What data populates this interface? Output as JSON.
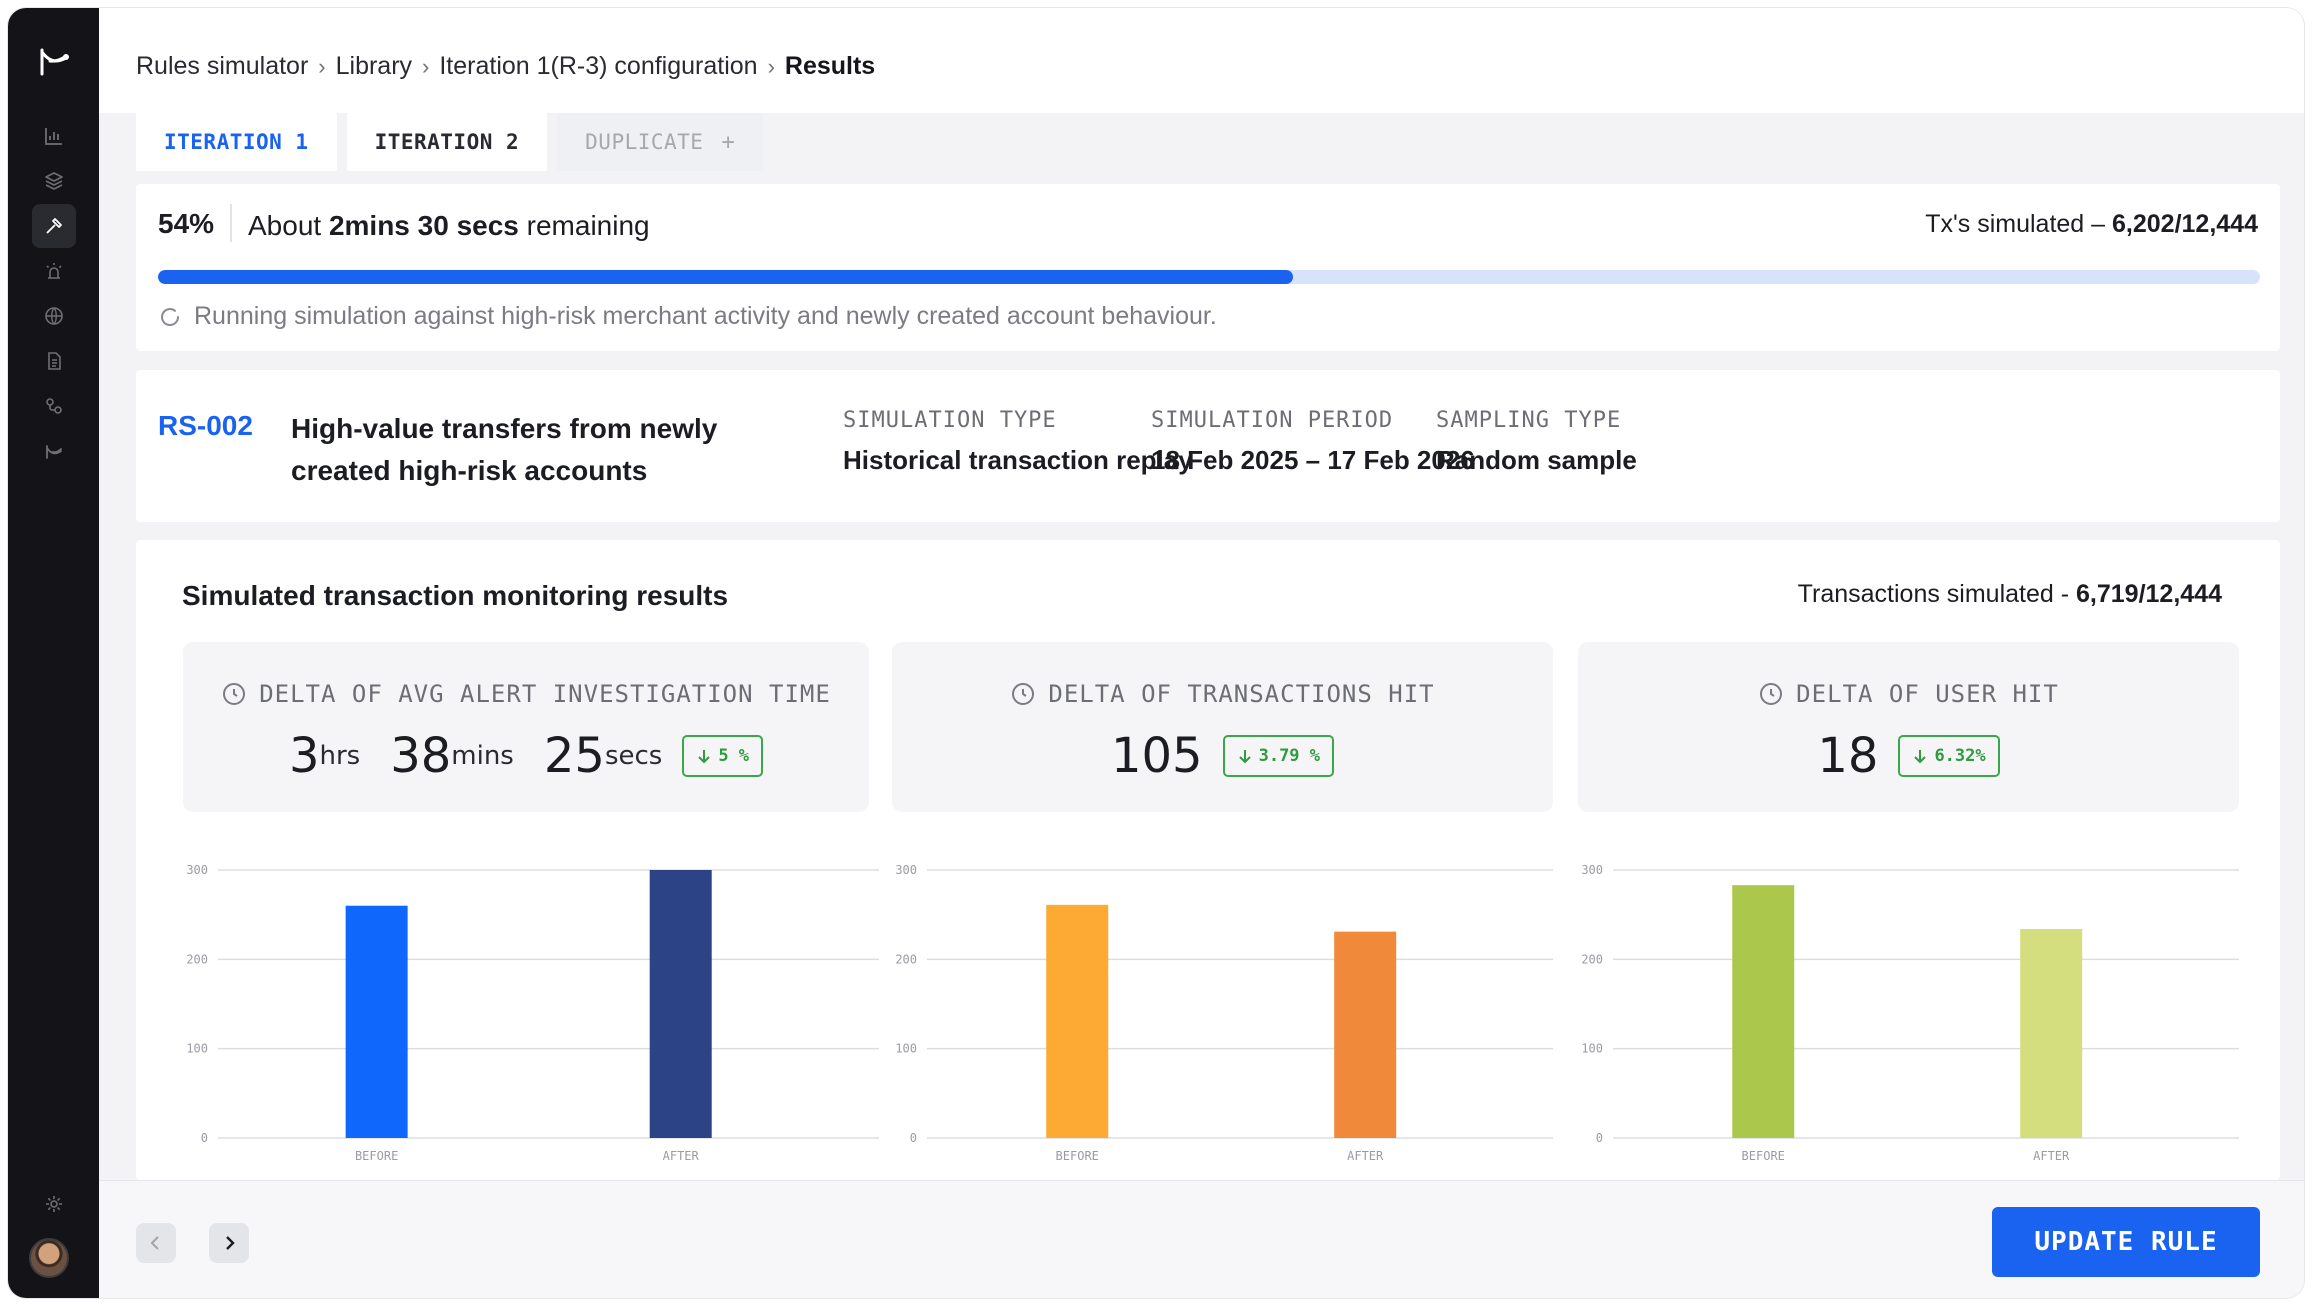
{
  "breadcrumb": {
    "items": [
      "Rules simulator",
      "Library",
      "Iteration 1(R-3) configuration"
    ],
    "current": "Results",
    "separator": "›"
  },
  "tabs": [
    {
      "label": "ITERATION 1",
      "state": "active"
    },
    {
      "label": "ITERATION 2",
      "state": "normal"
    },
    {
      "label": "DUPLICATE",
      "state": "disabled",
      "icon": "plus-icon"
    }
  ],
  "progress": {
    "percent_label": "54%",
    "percent": 54,
    "remaining_prefix": "About",
    "remaining_bold": "2mins 30 secs",
    "remaining_suffix": "remaining",
    "tx_label": "Tx's simulated –",
    "tx_value": "6,202/12,444",
    "status": "Running simulation against high-risk merchant activity and newly created account behaviour."
  },
  "rule": {
    "id": "RS-002",
    "title": "High-value transfers from newly created high-risk accounts",
    "meta": [
      {
        "label": "SIMULATION TYPE",
        "value": "Historical transaction replay"
      },
      {
        "label": "SIMULATION PERIOD",
        "value": "18 Feb 2025 – 17 Feb 2026"
      },
      {
        "label": "SAMPLING TYPE",
        "value": "Random sample"
      }
    ]
  },
  "results": {
    "title": "Simulated transaction monitoring results",
    "sim_label": "Transactions simulated -",
    "sim_value": "6,719/12,444",
    "metrics": [
      {
        "label": "DELTA OF AVG ALERT INVESTIGATION TIME",
        "icon": "clock-icon",
        "parts": [
          {
            "num": "3",
            "unit": "hrs"
          },
          {
            "num": "38",
            "unit": "mins"
          },
          {
            "num": "25",
            "unit": "secs"
          }
        ],
        "delta": "5 %"
      },
      {
        "label": "DELTA OF TRANSACTIONS HIT",
        "icon": "clock-icon",
        "value": "105",
        "delta": "3.79 %"
      },
      {
        "label": "DELTA OF USER HIT",
        "icon": "clock-icon",
        "value": "18",
        "delta": "6.32%"
      }
    ]
  },
  "chart_data": [
    {
      "type": "bar",
      "categories": [
        "BEFORE",
        "AFTER"
      ],
      "values": [
        260,
        300
      ],
      "colors": [
        "#0f67fb",
        "#2c4386"
      ],
      "ylim": [
        0,
        300
      ],
      "yticks": [
        0,
        100,
        200,
        300
      ],
      "grid": true
    },
    {
      "type": "bar",
      "categories": [
        "BEFORE",
        "AFTER"
      ],
      "values": [
        261,
        231
      ],
      "colors": [
        "#fcaa33",
        "#f1893a"
      ],
      "ylim": [
        0,
        300
      ],
      "yticks": [
        0,
        100,
        200,
        300
      ],
      "grid": true
    },
    {
      "type": "bar",
      "categories": [
        "BEFORE",
        "AFTER"
      ],
      "values": [
        283,
        234
      ],
      "colors": [
        "#acc84c",
        "#d5de7e"
      ],
      "ylim": [
        0,
        300
      ],
      "yticks": [
        0,
        100,
        200,
        300
      ],
      "grid": true
    }
  ],
  "footer": {
    "prev_icon": "chevron-left-icon",
    "next_icon": "chevron-right-icon",
    "update_label": "UPDATE RULE"
  },
  "colors": {
    "accent": "#1a63f0",
    "sidebar": "#141418",
    "delta_green": "#3aa84a"
  }
}
